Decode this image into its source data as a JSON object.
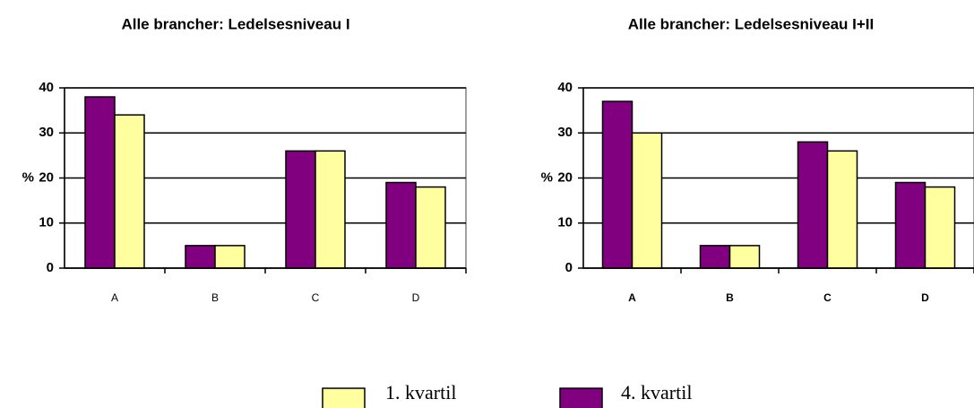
{
  "chart_data": [
    {
      "type": "bar",
      "title": "Alle brancher: Ledelsesniveau I",
      "ylabel": "%",
      "categories": [
        "A",
        "B",
        "C",
        "D"
      ],
      "series": [
        {
          "name": "4. kvartil",
          "color": "#800080",
          "values": [
            38,
            5,
            26,
            19
          ]
        },
        {
          "name": "1. kvartil",
          "color": "#ffffa0",
          "values": [
            34,
            5,
            26,
            18
          ]
        }
      ],
      "ylim": [
        0,
        40
      ],
      "yticks": [
        0,
        10,
        20,
        30,
        40
      ],
      "grid": true
    },
    {
      "type": "bar",
      "title": "Alle brancher: Ledelsesniveau I+II",
      "ylabel": "%",
      "categories": [
        "A",
        "B",
        "C",
        "D"
      ],
      "series": [
        {
          "color": "#800080",
          "values": [
            37,
            5,
            28,
            19
          ]
        },
        {
          "color": "#ffffa0",
          "values": [
            30,
            5,
            26,
            18
          ]
        }
      ],
      "ylim": [
        0,
        40
      ],
      "yticks": [
        0,
        10,
        20,
        30,
        40
      ],
      "grid": true
    }
  ]
}
